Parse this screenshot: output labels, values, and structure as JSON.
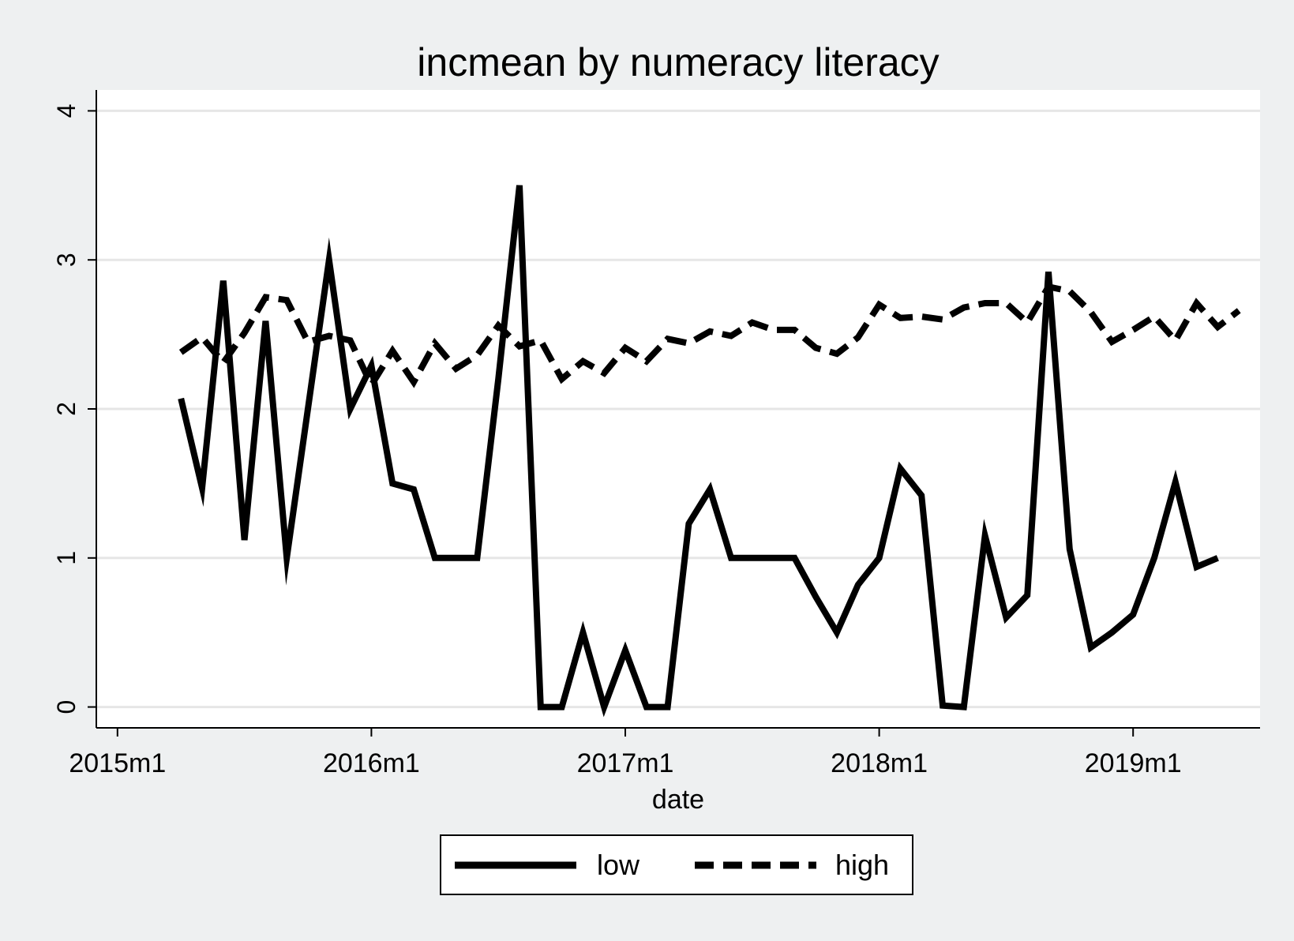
{
  "chart_data": {
    "type": "line",
    "title": "incmean by numeracy literacy",
    "xlabel": "date",
    "ylabel": "",
    "x_start": "2015m4",
    "x_frequency": "monthly",
    "x_ticks": [
      "2015m1",
      "2016m1",
      "2017m1",
      "2018m1",
      "2019m1"
    ],
    "x_range": [
      "2014m12",
      "2019m7"
    ],
    "y_ticks": [
      "0",
      "1",
      "2",
      "3",
      "4"
    ],
    "ylim": [
      -0.14,
      4.14
    ],
    "grid": "horizontal",
    "legend_position": "bottom",
    "colors": {
      "background": "#eef0f1",
      "plot_area": "#ffffff",
      "line": "#000000",
      "grid": "#e6e6e6"
    },
    "series": [
      {
        "name": "low",
        "style": "solid",
        "values": [
          2.07,
          1.47,
          2.86,
          1.12,
          2.59,
          1.0,
          2.0,
          3.0,
          2.0,
          2.29,
          1.5,
          1.46,
          1.0,
          1.0,
          1.0,
          2.2,
          3.5,
          0.0,
          0.0,
          0.5,
          0.0,
          0.38,
          0.0,
          0.0,
          1.23,
          1.46,
          1.0,
          1.0,
          1.0,
          1.0,
          0.74,
          0.5,
          0.82,
          1.0,
          1.6,
          1.42,
          0.01,
          0.0,
          1.15,
          0.6,
          0.75,
          2.92,
          1.06,
          0.4,
          0.5,
          0.62,
          1.0,
          1.51,
          0.94,
          1.0
        ]
      },
      {
        "name": "high",
        "style": "dashed",
        "values": [
          2.38,
          2.48,
          2.31,
          2.51,
          2.75,
          2.73,
          2.45,
          2.49,
          2.46,
          2.16,
          2.39,
          2.18,
          2.44,
          2.27,
          2.36,
          2.56,
          2.42,
          2.46,
          2.2,
          2.32,
          2.24,
          2.41,
          2.32,
          2.47,
          2.44,
          2.52,
          2.49,
          2.58,
          2.53,
          2.53,
          2.41,
          2.37,
          2.48,
          2.7,
          2.61,
          2.62,
          2.6,
          2.68,
          2.71,
          2.71,
          2.58,
          2.82,
          2.79,
          2.65,
          2.45,
          2.53,
          2.62,
          2.46,
          2.71,
          2.55,
          2.66
        ]
      }
    ]
  }
}
